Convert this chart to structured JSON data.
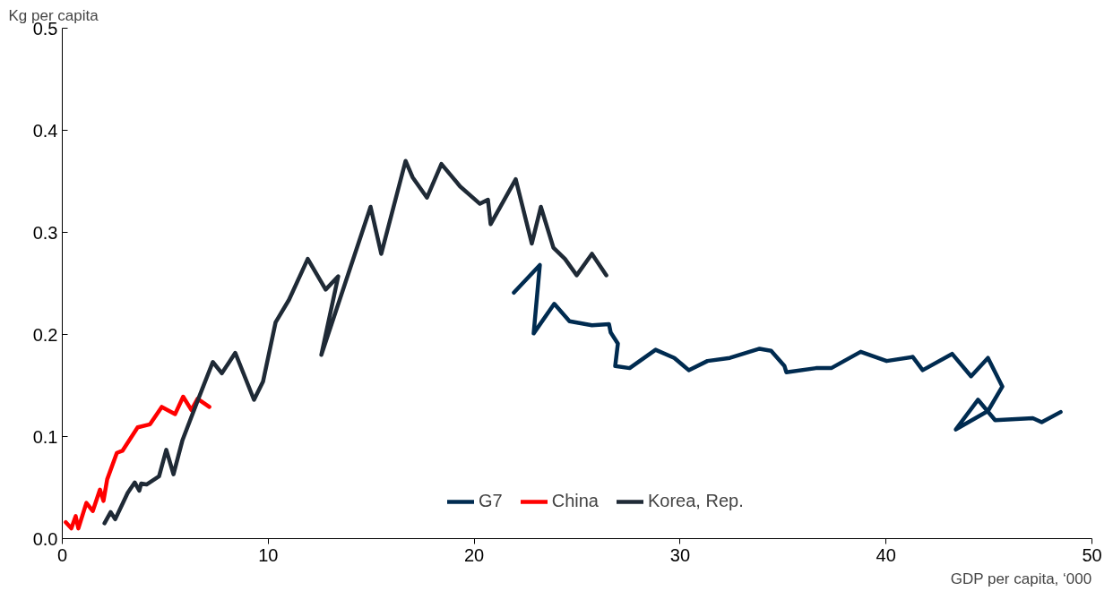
{
  "chart_data": {
    "type": "line",
    "xlabel": "GDP per capita, ‘000",
    "ylabel": "Kg per capita",
    "xlim": [
      0,
      50
    ],
    "xticks": [
      0,
      10,
      20,
      30,
      40,
      50
    ],
    "ylim": [
      0,
      0.5
    ],
    "yticks": [
      {
        "value": 0,
        "label": "0.0"
      },
      0.1,
      0.2,
      0.3,
      0.4,
      0.5
    ],
    "grid": false,
    "legend": "bottom",
    "marker": "none",
    "line_style": "solid",
    "series": [
      {
        "name": "G7",
        "color": "#002b50",
        "x": [
          21.93,
          23.19,
          22.89,
          23.89,
          24.63,
          25.72,
          26.55,
          26.63,
          26.98,
          26.85,
          27.55,
          28.81,
          29.72,
          30.42,
          31.33,
          32.42,
          33.86,
          34.42,
          35.07,
          35.16,
          36.6,
          37.34,
          38.77,
          40.03,
          41.3,
          41.78,
          43.21,
          44.13,
          44.95,
          45.65,
          44.95,
          43.39,
          44.47,
          45.3,
          47.13,
          47.56,
          48.48
        ],
        "values": [
          0.241,
          0.268,
          0.201,
          0.23,
          0.213,
          0.209,
          0.21,
          0.202,
          0.191,
          0.169,
          0.167,
          0.185,
          0.177,
          0.165,
          0.174,
          0.177,
          0.186,
          0.184,
          0.169,
          0.163,
          0.167,
          0.167,
          0.183,
          0.174,
          0.178,
          0.165,
          0.181,
          0.159,
          0.177,
          0.149,
          0.125,
          0.107,
          0.136,
          0.116,
          0.118,
          0.114,
          0.124
        ]
      },
      {
        "name": "China",
        "color": "#ff0000",
        "x": [
          0.17,
          0.44,
          0.65,
          0.78,
          1.17,
          1.48,
          1.83,
          2.0,
          2.18,
          2.65,
          2.92,
          3.66,
          4.26,
          4.83,
          5.48,
          5.87,
          6.27,
          6.57,
          7.14
        ],
        "values": [
          0.016,
          0.01,
          0.022,
          0.01,
          0.035,
          0.027,
          0.048,
          0.037,
          0.058,
          0.084,
          0.086,
          0.109,
          0.112,
          0.129,
          0.122,
          0.139,
          0.126,
          0.137,
          0.129
        ]
      },
      {
        "name": "Korea, Rep.",
        "color": "#1f2a36",
        "x": [
          2.05,
          2.35,
          2.57,
          3.18,
          3.52,
          3.74,
          3.83,
          4.09,
          4.7,
          5.05,
          5.4,
          5.83,
          6.57,
          7.31,
          7.75,
          8.4,
          9.31,
          9.75,
          10.36,
          11.01,
          11.92,
          12.79,
          13.4,
          12.58,
          14.97,
          15.49,
          16.67,
          17.01,
          17.71,
          18.41,
          19.32,
          20.28,
          20.67,
          20.8,
          22.02,
          22.8,
          23.24,
          23.85,
          24.41,
          24.98,
          25.72,
          26.42
        ],
        "values": [
          0.015,
          0.026,
          0.019,
          0.045,
          0.055,
          0.047,
          0.054,
          0.053,
          0.061,
          0.087,
          0.063,
          0.096,
          0.135,
          0.173,
          0.162,
          0.182,
          0.136,
          0.154,
          0.212,
          0.234,
          0.274,
          0.244,
          0.257,
          0.18,
          0.325,
          0.279,
          0.37,
          0.354,
          0.334,
          0.367,
          0.345,
          0.328,
          0.332,
          0.308,
          0.352,
          0.289,
          0.325,
          0.285,
          0.274,
          0.258,
          0.279,
          0.258
        ]
      }
    ]
  }
}
